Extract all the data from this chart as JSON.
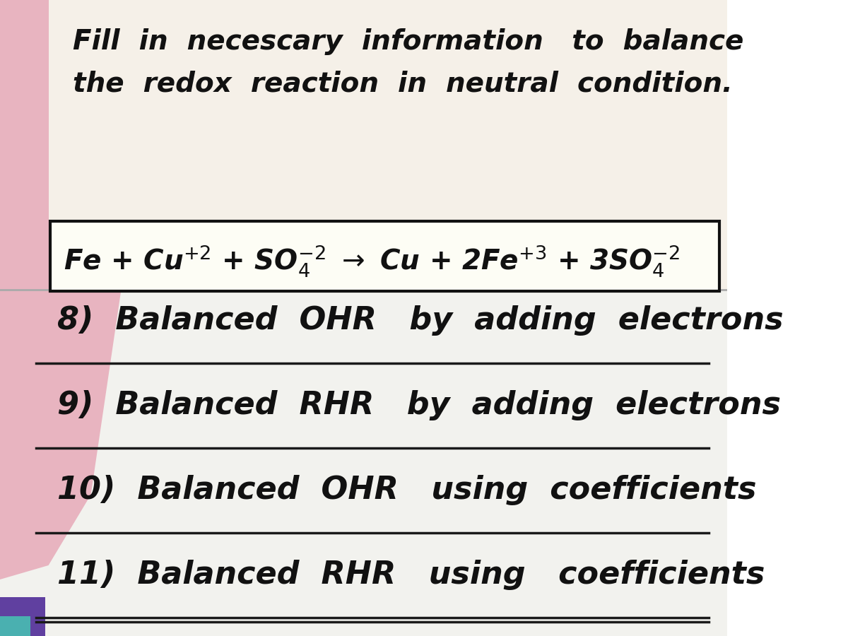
{
  "bg_pink_color": "#e8b4c0",
  "bg_paper_top": "#f5f0e8",
  "bg_paper_bottom": "#f2f2ee",
  "bg_teal_corner": "#4ab0b0",
  "bg_purple_corner": "#6040a0",
  "title_line1": "Fill  in  necescary  information   to  balance",
  "title_line2": "the  redox  reaction  in  neutral  condition.",
  "reaction_text": "Fe + Cu$^{+2}$ + SO$_4^{\\,-2}$ $\\rightarrow$ Cu + 2Fe$^{+3}$ + 3SO$_4^{\\,-2}$",
  "items": [
    "8)  Balanced  OHR   by  adding  electrons",
    "9)  Balanced  RHR   by  adding  electrons",
    "10)  Balanced  OHR   using  coefficients",
    "11)  Balanced  RHR   using   coefficients"
  ],
  "text_color": "#111111",
  "line_color": "#1a1a1a",
  "box_edge_color": "#111111",
  "fontsize_title": 28,
  "fontsize_reaction": 28,
  "fontsize_items": 32
}
